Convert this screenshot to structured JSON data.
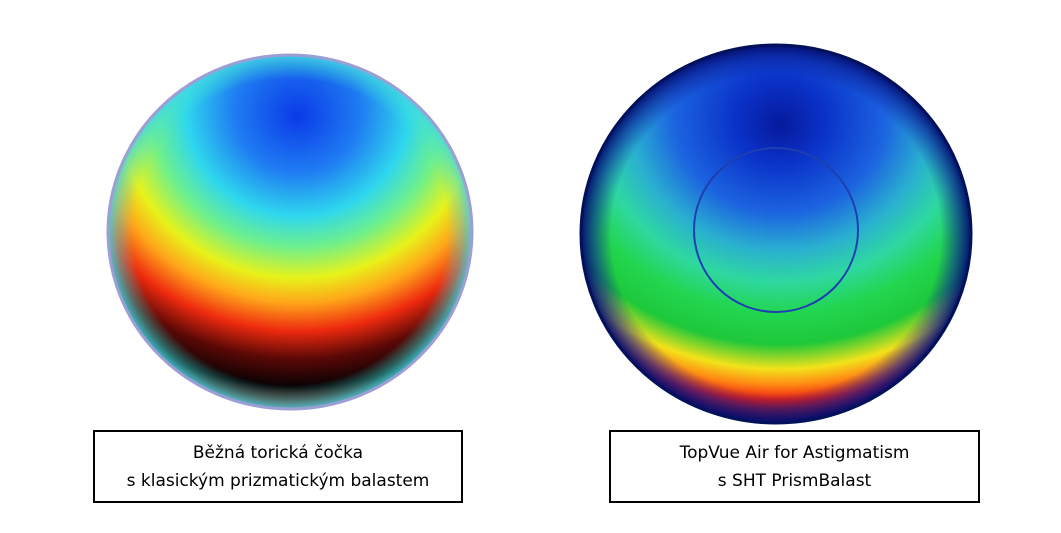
{
  "lenses": [
    {
      "caption_lines": [
        "Běžná torická čočka",
        "s klasickým prizmatickým balastem"
      ]
    },
    {
      "caption_lines": [
        "TopVue Air for Astigmatism",
        "s SHT PrismBalast"
      ]
    }
  ]
}
